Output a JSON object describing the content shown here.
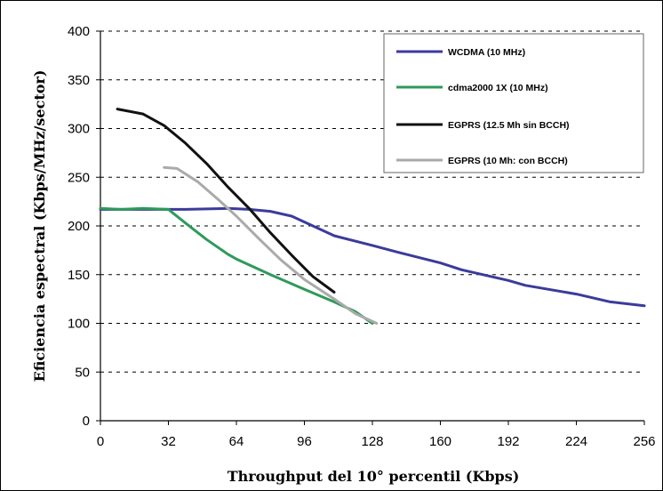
{
  "chart_data": {
    "type": "line",
    "title": "",
    "xlabel": "Throughput del 10° percentil (Kbps)",
    "ylabel": "Eficiencia espectral (Kbps/MHz/sector)",
    "xlim": [
      0,
      256
    ],
    "ylim": [
      0,
      400
    ],
    "xticks": [
      0,
      32,
      64,
      96,
      128,
      160,
      192,
      224,
      256
    ],
    "yticks": [
      0,
      50,
      100,
      150,
      200,
      250,
      300,
      350,
      400
    ],
    "grid": "horizontal-dashed",
    "legend_position": "top-right",
    "series": [
      {
        "name": "WCDMA (10 MHz)",
        "color": "#3b3b9c",
        "points": [
          [
            0,
            217
          ],
          [
            20,
            217
          ],
          [
            40,
            217
          ],
          [
            60,
            218
          ],
          [
            70,
            217
          ],
          [
            80,
            215
          ],
          [
            90,
            210
          ],
          [
            100,
            200
          ],
          [
            110,
            190
          ],
          [
            128,
            180
          ],
          [
            140,
            173
          ],
          [
            160,
            162
          ],
          [
            170,
            155
          ],
          [
            192,
            144
          ],
          [
            200,
            139
          ],
          [
            224,
            130
          ],
          [
            240,
            122
          ],
          [
            256,
            118
          ]
        ]
      },
      {
        "name": "cdma2000 1X (10 MHz)",
        "color": "#2e9a5a",
        "points": [
          [
            0,
            218
          ],
          [
            10,
            217
          ],
          [
            20,
            218
          ],
          [
            32,
            217
          ],
          [
            40,
            203
          ],
          [
            50,
            186
          ],
          [
            60,
            171
          ],
          [
            64,
            166
          ],
          [
            80,
            150
          ],
          [
            96,
            135
          ],
          [
            110,
            122
          ],
          [
            120,
            112
          ],
          [
            128,
            100
          ]
        ]
      },
      {
        "name": "EGPRS (12.5 Mh   sin BCCH)",
        "color": "#111111",
        "points": [
          [
            8,
            320
          ],
          [
            20,
            315
          ],
          [
            30,
            303
          ],
          [
            40,
            285
          ],
          [
            50,
            264
          ],
          [
            60,
            240
          ],
          [
            70,
            218
          ],
          [
            80,
            193
          ],
          [
            90,
            170
          ],
          [
            100,
            148
          ],
          [
            110,
            132
          ]
        ]
      },
      {
        "name": "EGPRS (10 Mh:   con BCCH)",
        "color": "#aaaaaa",
        "points": [
          [
            30,
            260
          ],
          [
            36,
            259
          ],
          [
            46,
            245
          ],
          [
            56,
            226
          ],
          [
            64,
            210
          ],
          [
            75,
            186
          ],
          [
            85,
            165
          ],
          [
            96,
            145
          ],
          [
            110,
            125
          ],
          [
            120,
            110
          ],
          [
            130,
            100
          ]
        ]
      }
    ]
  },
  "ytick_labels": [
    "0",
    "50",
    "100",
    "150",
    "200",
    "250",
    "300",
    "350",
    "400"
  ],
  "xtick_labels": [
    "0",
    "32",
    "64",
    "96",
    "128",
    "160",
    "192",
    "224",
    "256"
  ]
}
